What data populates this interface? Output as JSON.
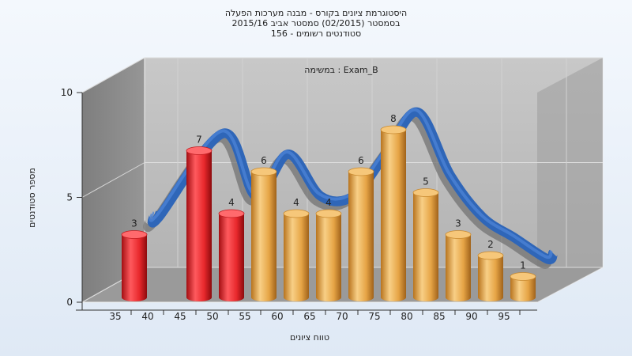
{
  "chart_data": {
    "type": "bar",
    "title_lines": [
      "היסטוגרמת ציונים בקורס - מבנה מערכות הפעלה",
      "בסמסטר  (02/2015)  סמסטר אביב 2015/16",
      "סטודנטים רשומים - 156"
    ],
    "annotation": "במשימה : Exam_B",
    "xlabel": "טווח ציונים",
    "ylabel": "מספר סטודנטים",
    "ylim": [
      0,
      10
    ],
    "y_ticks": [
      "0",
      "5",
      "10"
    ],
    "x_ticks": [
      "35",
      "40",
      "45",
      "50",
      "55",
      "60",
      "65",
      "70",
      "75",
      "80",
      "85",
      "90",
      "95"
    ],
    "categories": [
      "35",
      "45",
      "50",
      "55",
      "60",
      "65",
      "70",
      "75",
      "80",
      "85",
      "90",
      "95"
    ],
    "values": [
      3,
      7,
      4,
      6,
      4,
      4,
      6,
      8,
      5,
      3,
      2,
      1
    ],
    "bar_colors": [
      "#e8282c",
      "#e8282c",
      "#e8282c",
      "#e6a546",
      "#e6a546",
      "#e6a546",
      "#e6a546",
      "#e6a546",
      "#e6a546",
      "#e6a546",
      "#e6a546",
      "#e6a546"
    ],
    "curve_color": "#2f66b8",
    "grid": true
  }
}
